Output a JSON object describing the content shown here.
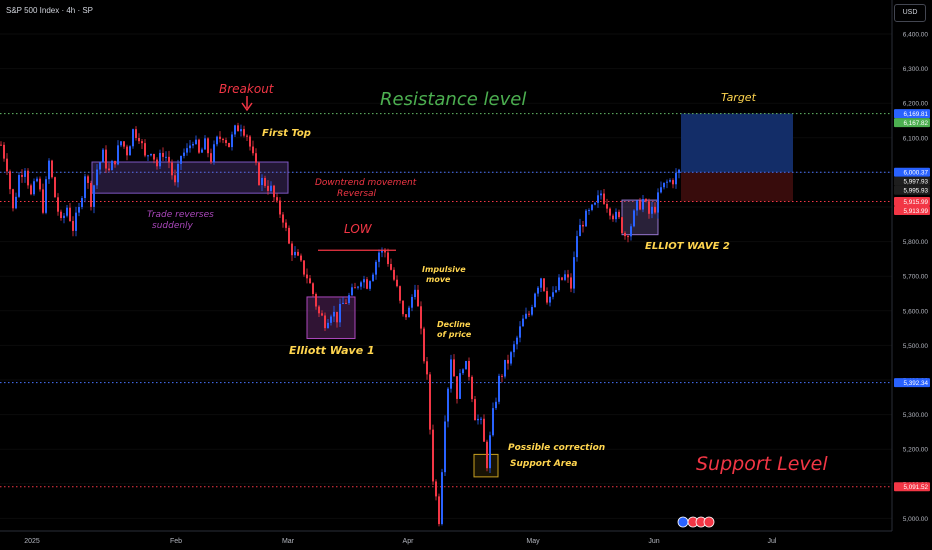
{
  "header": {
    "symbol_title": "S&P 500 Index · 4h · SP",
    "currency": "USD"
  },
  "colors": {
    "bull": "#2962ff",
    "bear": "#f23645",
    "resistance": "#66bb6a",
    "support_red": "#f23645",
    "blue_level": "#3d6eff",
    "label_blue": "#2962ff",
    "target_zone": "#1a3a8a",
    "stop_zone": "#4a1010",
    "purple_box": "#7e57c2",
    "yellow_box": "#c8a020"
  },
  "icons": [
    "lightning-icon",
    "flag-icon",
    "flag-icon",
    "flag-icon"
  ],
  "chart_data": {
    "type": "candlestick",
    "title": "S&P 500 Index · 4h · SP",
    "x_ticks": [
      "2025",
      "Feb",
      "Mar",
      "Apr",
      "May",
      "Jun",
      "Jul"
    ],
    "y_ticks": [
      6400,
      6300,
      6200,
      6100,
      6000,
      5900,
      5800,
      5700,
      5600,
      5500,
      5400,
      5300,
      5200,
      5100,
      5000
    ],
    "y_tick_labels": [
      "6,400.00",
      "6,300.00",
      "6,200.00",
      "6,100.00",
      "6,000.00",
      "5,900.00",
      "5,800.00",
      "5,700.00",
      "5,600.00",
      "5,500.00",
      "5,400.00",
      "5,300.00",
      "5,200.00",
      "5,100.00",
      "5,000.00"
    ],
    "ylim": [
      4960,
      6500
    ],
    "price_path": [
      [
        0,
        6080
      ],
      [
        6,
        6020
      ],
      [
        12,
        5890
      ],
      [
        18,
        5990
      ],
      [
        24,
        6020
      ],
      [
        30,
        5930
      ],
      [
        36,
        5980
      ],
      [
        42,
        5900
      ],
      [
        48,
        6030
      ],
      [
        54,
        5930
      ],
      [
        60,
        5850
      ],
      [
        66,
        5900
      ],
      [
        72,
        5840
      ],
      [
        78,
        5890
      ],
      [
        84,
        6000
      ],
      [
        90,
        5920
      ],
      [
        96,
        6010
      ],
      [
        102,
        6050
      ],
      [
        108,
        6000
      ],
      [
        114,
        6040
      ],
      [
        120,
        6090
      ],
      [
        126,
        6060
      ],
      [
        132,
        6120
      ],
      [
        138,
        6110
      ],
      [
        144,
        6040
      ],
      [
        150,
        6070
      ],
      [
        156,
        6020
      ],
      [
        162,
        6060
      ],
      [
        168,
        6030
      ],
      [
        174,
        5960
      ],
      [
        180,
        6050
      ],
      [
        186,
        6060
      ],
      [
        192,
        6100
      ],
      [
        198,
        6050
      ],
      [
        204,
        6080
      ],
      [
        210,
        6040
      ],
      [
        216,
        6090
      ],
      [
        222,
        6110
      ],
      [
        228,
        6080
      ],
      [
        234,
        6120
      ],
      [
        240,
        6140
      ],
      [
        246,
        6110
      ],
      [
        252,
        6040
      ],
      [
        258,
        5980
      ],
      [
        264,
        5970
      ],
      [
        270,
        5950
      ],
      [
        276,
        5900
      ],
      [
        282,
        5870
      ],
      [
        288,
        5790
      ],
      [
        294,
        5760
      ],
      [
        300,
        5730
      ],
      [
        306,
        5700
      ],
      [
        312,
        5650
      ],
      [
        318,
        5590
      ],
      [
        324,
        5570
      ],
      [
        330,
        5600
      ],
      [
        336,
        5580
      ],
      [
        342,
        5620
      ],
      [
        348,
        5640
      ],
      [
        354,
        5660
      ],
      [
        360,
        5700
      ],
      [
        366,
        5680
      ],
      [
        372,
        5720
      ],
      [
        378,
        5770
      ],
      [
        384,
        5770
      ],
      [
        390,
        5720
      ],
      [
        396,
        5660
      ],
      [
        402,
        5580
      ],
      [
        408,
        5600
      ],
      [
        414,
        5680
      ],
      [
        420,
        5530
      ],
      [
        426,
        5400
      ],
      [
        432,
        5120
      ],
      [
        438,
        5000
      ],
      [
        444,
        5300
      ],
      [
        450,
        5470
      ],
      [
        456,
        5360
      ],
      [
        462,
        5450
      ],
      [
        468,
        5420
      ],
      [
        474,
        5300
      ],
      [
        480,
        5270
      ],
      [
        486,
        5160
      ],
      [
        492,
        5300
      ],
      [
        498,
        5400
      ],
      [
        504,
        5440
      ],
      [
        510,
        5470
      ],
      [
        516,
        5520
      ],
      [
        522,
        5570
      ],
      [
        528,
        5590
      ],
      [
        534,
        5660
      ],
      [
        540,
        5700
      ],
      [
        546,
        5640
      ],
      [
        552,
        5640
      ],
      [
        558,
        5680
      ],
      [
        564,
        5700
      ],
      [
        570,
        5670
      ],
      [
        576,
        5820
      ],
      [
        582,
        5860
      ],
      [
        588,
        5880
      ],
      [
        594,
        5900
      ],
      [
        600,
        5940
      ],
      [
        606,
        5910
      ],
      [
        612,
        5880
      ],
      [
        618,
        5860
      ],
      [
        624,
        5820
      ],
      [
        630,
        5850
      ],
      [
        636,
        5900
      ],
      [
        642,
        5920
      ],
      [
        648,
        5880
      ],
      [
        654,
        5900
      ],
      [
        660,
        5950
      ],
      [
        666,
        5970
      ],
      [
        672,
        5980
      ],
      [
        678,
        6000
      ]
    ],
    "levels": [
      {
        "name": "Resistance level",
        "value": 6169.81,
        "label": "6,169.81",
        "style": "dotted-green"
      },
      {
        "name": "blue_6000",
        "value": 6000.37,
        "label": "6,000.37",
        "style": "dotted-blue"
      },
      {
        "name": "red_5915",
        "value": 5915.99,
        "label": "5,915.99",
        "style": "dotted-red"
      },
      {
        "name": "blue_5392",
        "value": 5392.34,
        "label": "5,392.34",
        "style": "dotted-blue"
      },
      {
        "name": "Support Level",
        "value": 5091.52,
        "label": "5,091.52",
        "style": "dotted-red"
      }
    ],
    "price_labels": [
      {
        "label": "6,169.81",
        "value": 6169.81,
        "color": "#2962ff"
      },
      {
        "label": "6,167.82",
        "value": 6167.82,
        "color": "#4caf50"
      },
      {
        "label": "6,000.37",
        "value": 6000.37,
        "color": "#2962ff"
      },
      {
        "label": "5,997.93",
        "value": 5997.93,
        "color": "#1e1e1e"
      },
      {
        "label": "5,995.93",
        "value": 5995.93,
        "color": "#1e1e1e"
      },
      {
        "label": "5,915.99",
        "value": 5915.99,
        "color": "#f23645"
      },
      {
        "label": "5,913.99",
        "value": 5913.99,
        "color": "#f23645"
      },
      {
        "label": "5,392.34",
        "value": 5392.34,
        "color": "#2962ff"
      },
      {
        "label": "5,091.52",
        "value": 5091.52,
        "color": "#f23645"
      }
    ],
    "zones": [
      {
        "name": "target-zone",
        "from": 6000,
        "to": 6170,
        "color": "#142f6e"
      },
      {
        "name": "stop-zone",
        "from": 5916,
        "to": 6000,
        "color": "#3b0d0d"
      }
    ],
    "boxes": [
      {
        "name": "trade-reverse-box",
        "from": 5940,
        "to": 6030,
        "color": "#7e57c2"
      },
      {
        "name": "elliott-wave-1-box",
        "from": 5520,
        "to": 5640,
        "color": "#ab47bc"
      },
      {
        "name": "elliott-wave-2-box",
        "from": 5820,
        "to": 5920,
        "color": "#9575cd"
      },
      {
        "name": "support-area-box",
        "from": 5120,
        "to": 5185,
        "color": "#c8a020"
      }
    ]
  },
  "annotations": {
    "breakout": "Breakout",
    "first_top": "First Top",
    "resistance": "Resistance level",
    "target": "Target",
    "downtrend": "Downtrend movement",
    "reversal": "Reversal",
    "trade_reverses": "Trade reverses",
    "suddenly": "suddenly",
    "low": "LOW",
    "impulsive": "Impulsive",
    "move": "move",
    "elliott_wave_1": "Elliott Wave 1",
    "decline": "Decline",
    "of_price": "of price",
    "elliott_wave_2": "ELLIOT WAVE 2",
    "possible_correction": "Possible correction",
    "support_area": "Support Area",
    "support_level": "Support Level"
  }
}
